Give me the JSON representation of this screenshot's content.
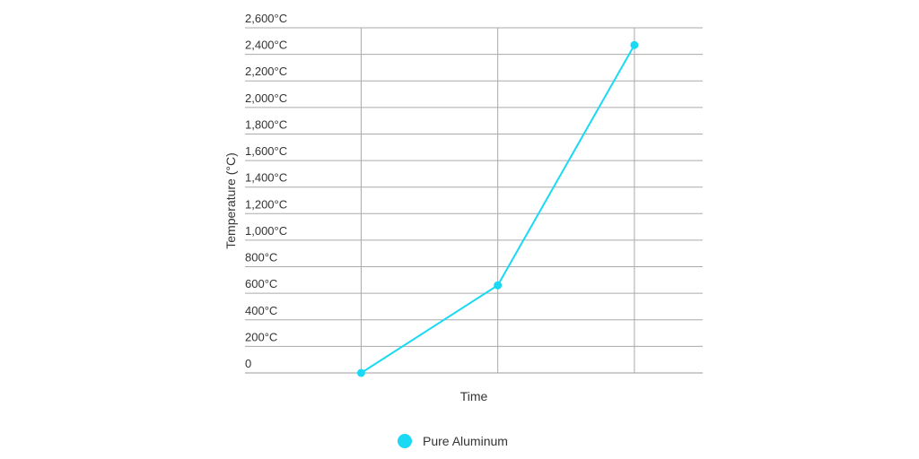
{
  "chart_data": {
    "type": "line",
    "title": "",
    "xlabel": "Time",
    "ylabel": "Temperature (°C)",
    "x": [
      1,
      2,
      3
    ],
    "xlim": [
      0.15,
      3.5
    ],
    "ylim": [
      0,
      2600
    ],
    "y_ticks": [
      0,
      200,
      400,
      600,
      800,
      1000,
      1200,
      1400,
      1600,
      1800,
      2000,
      2200,
      2400,
      2600
    ],
    "y_tick_labels": [
      "0",
      "200°C",
      "400°C",
      "600°C",
      "800°C",
      "1,000°C",
      "1,200°C",
      "1,400°C",
      "1,600°C",
      "1,800°C",
      "2,000°C",
      "2,200°C",
      "2,400°C",
      "2,600°C"
    ],
    "grid": true,
    "legend_position": "bottom",
    "series": [
      {
        "name": "Pure Aluminum",
        "color": "#1ad9f4",
        "values": [
          0,
          660,
          2470
        ]
      }
    ]
  }
}
